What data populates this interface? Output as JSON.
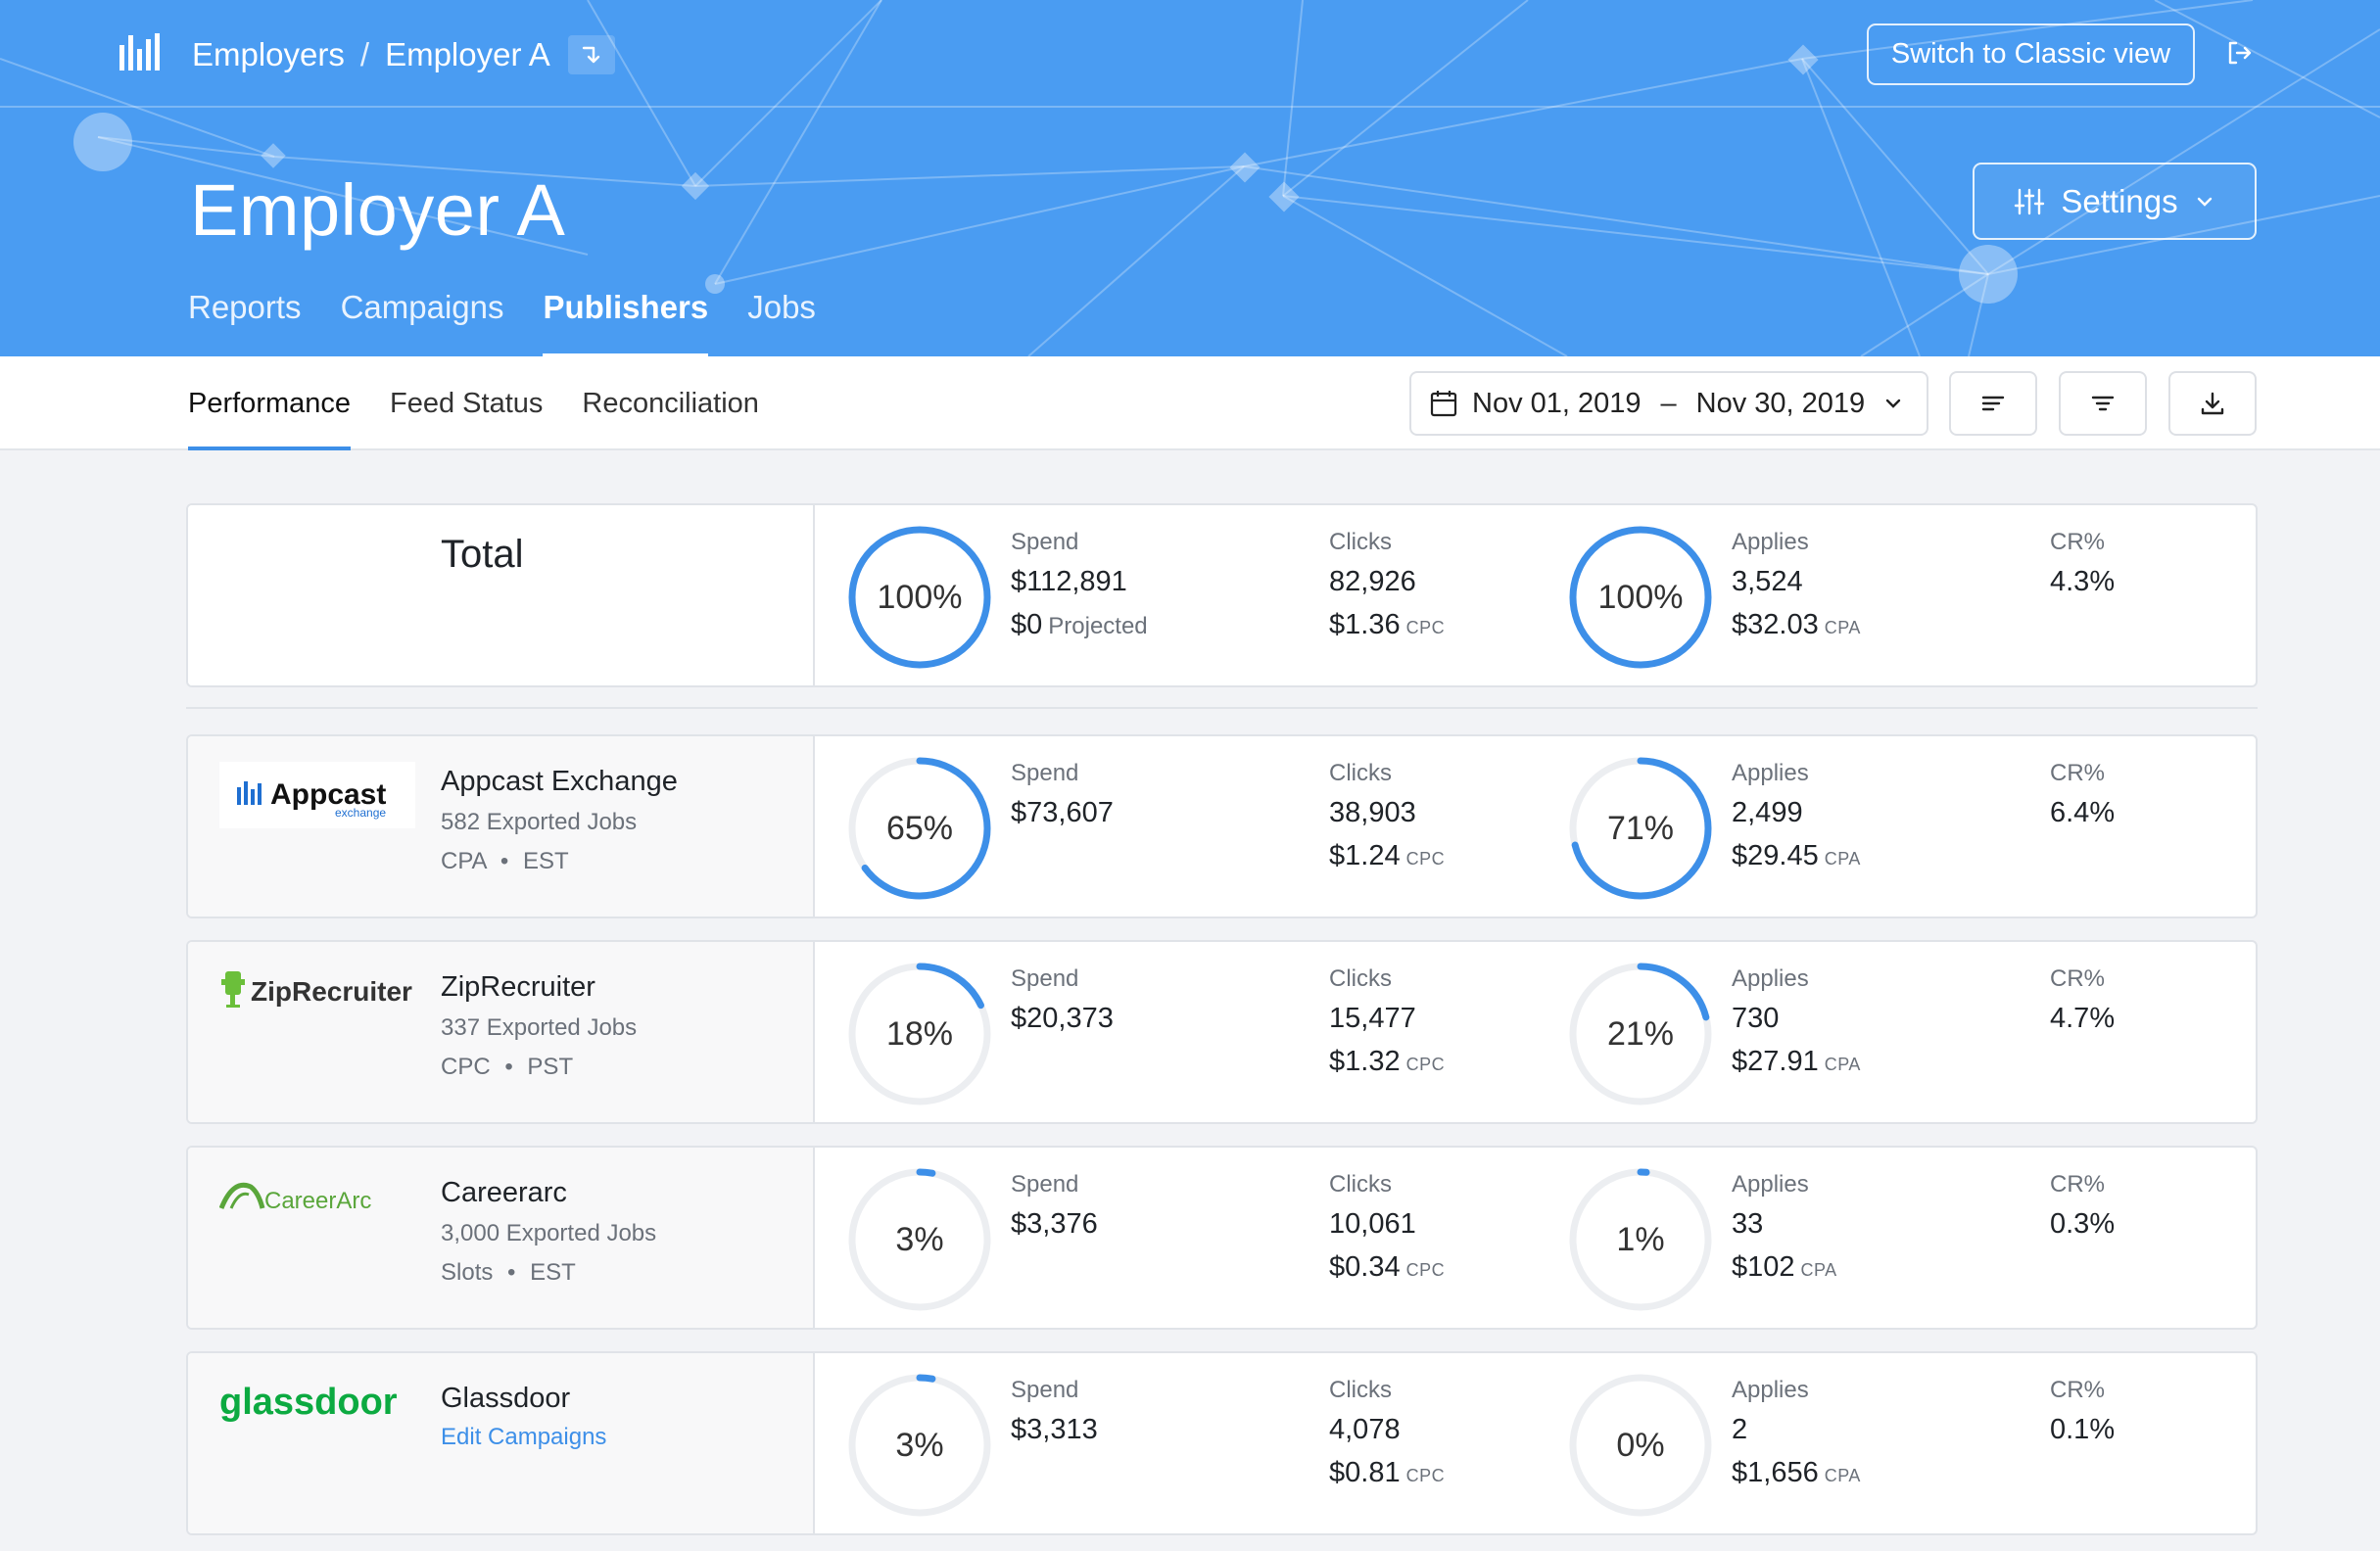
{
  "header": {
    "breadcrumb": [
      "Employers",
      "Employer A"
    ],
    "breadcrumb_sep": "/",
    "classic_view_label": "Switch to Classic view",
    "title": "Employer A",
    "settings_label": "Settings",
    "tabs": [
      "Reports",
      "Campaigns",
      "Publishers",
      "Jobs"
    ],
    "active_tab": "Publishers",
    "brand_color": "#4a9cf2"
  },
  "subnav": {
    "tabs": [
      "Performance",
      "Feed Status",
      "Reconciliation"
    ],
    "active_tab": "Performance",
    "date_from": "Nov 01, 2019",
    "date_sep": "–",
    "date_to": "Nov 30, 2019"
  },
  "labels": {
    "spend": "Spend",
    "clicks": "Clicks",
    "applies": "Applies",
    "cr": "CR%",
    "cpc": "CPC",
    "cpa": "CPA",
    "projected": "Projected"
  },
  "total": {
    "label": "Total",
    "spend_pct": "100%",
    "spend": "$112,891",
    "projected": "$0",
    "clicks": "82,926",
    "cpc": "$1.36",
    "applies_pct": "100%",
    "applies": "3,524",
    "cpa": "$32.03",
    "cr": "4.3%"
  },
  "publishers": [
    {
      "name": "Appcast Exchange",
      "jobs": "582 Exported Jobs",
      "model": "CPA",
      "tz": "EST",
      "logo_text": "Appcast",
      "logo_sub": "exchange",
      "spend_pct": "65%",
      "spend_frac": 0.65,
      "spend": "$73,607",
      "clicks": "38,903",
      "cpc": "$1.24",
      "applies_pct": "71%",
      "applies_frac": 0.71,
      "applies": "2,499",
      "cpa": "$29.45",
      "cr": "6.4%"
    },
    {
      "name": "ZipRecruiter",
      "jobs": "337 Exported Jobs",
      "model": "CPC",
      "tz": "PST",
      "logo_text": "ZipRecruiter",
      "spend_pct": "18%",
      "spend_frac": 0.18,
      "spend": "$20,373",
      "clicks": "15,477",
      "cpc": "$1.32",
      "applies_pct": "21%",
      "applies_frac": 0.21,
      "applies": "730",
      "cpa": "$27.91",
      "cr": "4.7%"
    },
    {
      "name": "Careerarc",
      "jobs": "3,000 Exported Jobs",
      "model": "Slots",
      "tz": "EST",
      "logo_text": "CareerArc",
      "spend_pct": "3%",
      "spend_frac": 0.03,
      "spend": "$3,376",
      "clicks": "10,061",
      "cpc": "$0.34",
      "applies_pct": "1%",
      "applies_frac": 0.01,
      "applies": "33",
      "cpa": "$102",
      "cr": "0.3%"
    },
    {
      "name": "Glassdoor",
      "link": "Edit Campaigns",
      "logo_text": "glassdoor",
      "spend_pct": "3%",
      "spend_frac": 0.03,
      "spend": "$3,313",
      "clicks": "4,078",
      "cpc": "$0.81",
      "applies_pct": "0%",
      "applies_frac": 0.0,
      "applies": "2",
      "cpa": "$1,656",
      "cr": "0.1%"
    }
  ],
  "colors": {
    "ring_active": "#3d8fe8",
    "ring_track": "#eceef1",
    "link": "#3d8fe8",
    "appcast_blue": "#1f6fd1",
    "zip_green": "#6bbf3a",
    "careerarc_green": "#5aa63b",
    "glassdoor_green": "#0caa41"
  }
}
